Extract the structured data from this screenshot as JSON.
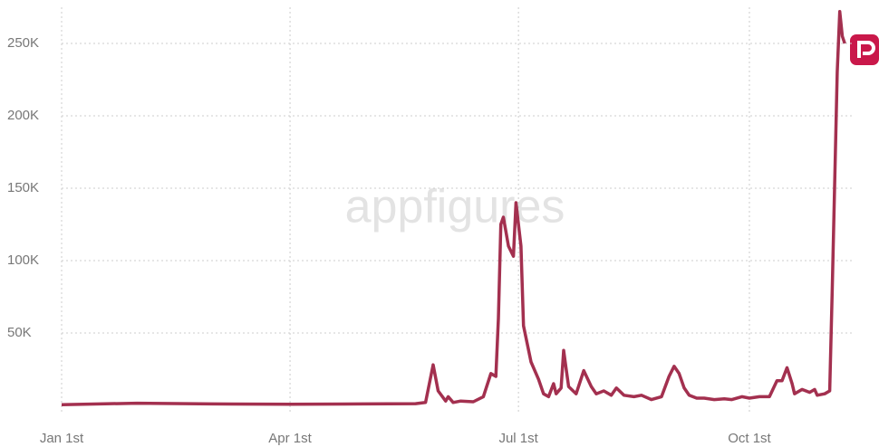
{
  "chart_data": {
    "type": "line",
    "watermark": "appfigures",
    "series": [
      {
        "color": "#a3304f",
        "x": [
          0,
          30,
          60,
          91,
          120,
          141,
          145,
          148,
          150,
          153,
          154,
          156,
          159,
          164,
          168,
          171,
          173,
          174,
          175,
          176,
          178,
          180,
          181,
          183,
          184,
          187,
          190,
          192,
          194,
          196,
          197,
          199,
          200,
          201,
          202,
          205,
          208,
          211,
          213,
          216,
          219,
          221,
          224,
          228,
          231,
          235,
          239,
          242,
          244,
          246,
          248,
          250,
          253,
          256,
          260,
          264,
          267,
          271,
          274,
          278,
          282,
          285,
          287,
          289,
          291,
          292,
          295,
          298,
          300,
          301,
          304,
          306,
          307,
          309,
          310,
          311,
          312
        ],
        "values": [
          500,
          1500,
          1000,
          800,
          1000,
          1200,
          2000,
          28000,
          10000,
          3000,
          6000,
          2000,
          3000,
          2500,
          6000,
          22000,
          20000,
          60000,
          125000,
          130000,
          110000,
          103000,
          140000,
          110000,
          55000,
          30000,
          18000,
          8000,
          6000,
          15000,
          8000,
          12000,
          38000,
          25000,
          13000,
          8000,
          24000,
          13000,
          8000,
          10000,
          7000,
          12000,
          7000,
          6000,
          7000,
          4000,
          6000,
          20000,
          27000,
          22000,
          12000,
          7000,
          5000,
          5000,
          4000,
          4500,
          4000,
          6000,
          5000,
          6000,
          6000,
          17000,
          17000,
          26000,
          15000,
          8000,
          11000,
          9000,
          11000,
          7000,
          8000,
          10000,
          80000,
          230000,
          272000,
          255000,
          250000
        ]
      }
    ],
    "xlim": [
      0,
      313
    ],
    "xticks": [
      {
        "value": 0,
        "label": "Jan 1st"
      },
      {
        "value": 91,
        "label": "Apr 1st"
      },
      {
        "value": 182,
        "label": "Jul 1st"
      },
      {
        "value": 274,
        "label": "Oct 1st"
      }
    ],
    "ylim": [
      0,
      275000
    ],
    "yticks": [
      {
        "value": 50000,
        "label": "50K"
      },
      {
        "value": 100000,
        "label": "100K"
      },
      {
        "value": 150000,
        "label": "150K"
      },
      {
        "value": 200000,
        "label": "200K"
      },
      {
        "value": 250000,
        "label": "250K"
      }
    ],
    "grid": true
  }
}
